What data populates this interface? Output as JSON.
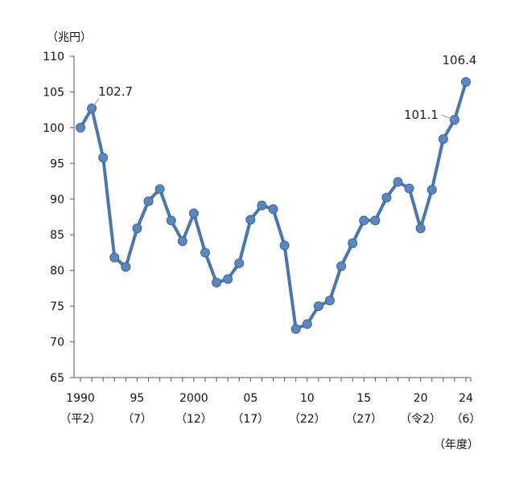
{
  "chart_data": {
    "type": "line",
    "y_unit_label": "（兆円）",
    "x_unit_label": "（年度）",
    "ylim": [
      65,
      110
    ],
    "y_ticks": [
      65,
      70,
      75,
      80,
      85,
      90,
      95,
      100,
      105,
      110
    ],
    "x_tick_labels": [
      {
        "year": 1990,
        "label": "1990",
        "era": "（平2）"
      },
      {
        "year": 1995,
        "label": "95",
        "era": "（7）"
      },
      {
        "year": 2000,
        "label": "2000",
        "era": "（12）"
      },
      {
        "year": 2005,
        "label": "05",
        "era": "（17）"
      },
      {
        "year": 2010,
        "label": "10",
        "era": "（22）"
      },
      {
        "year": 2015,
        "label": "15",
        "era": "（27）"
      },
      {
        "year": 2020,
        "label": "20",
        "era": "（令2）"
      },
      {
        "year": 2024,
        "label": "24",
        "era": "（6）"
      }
    ],
    "grid": false,
    "legend": "none",
    "line_color": "#4a76ab",
    "marker_color": "#5b87c0",
    "x": [
      1990,
      1991,
      1992,
      1993,
      1994,
      1995,
      1996,
      1997,
      1998,
      1999,
      2000,
      2001,
      2002,
      2003,
      2004,
      2005,
      2006,
      2007,
      2008,
      2009,
      2010,
      2011,
      2012,
      2013,
      2014,
      2015,
      2016,
      2017,
      2018,
      2019,
      2020,
      2021,
      2022,
      2023,
      2024
    ],
    "series": [
      {
        "values": [
          100,
          102.7,
          95.8,
          81.8,
          80.5,
          85.9,
          89.7,
          91.4,
          87.0,
          84.1,
          88.0,
          82.5,
          78.3,
          78.8,
          81.0,
          87.1,
          89.1,
          88.6,
          83.5,
          71.8,
          72.5,
          75.0,
          75.8,
          80.6,
          83.8,
          87.0,
          87.0,
          90.2,
          92.4,
          91.5,
          85.9,
          91.3,
          98.4,
          101.1,
          106.4
        ]
      }
    ],
    "annotations": [
      {
        "year": 1991,
        "text": "102.7"
      },
      {
        "year": 2023,
        "text": "101.1"
      },
      {
        "year": 2024,
        "text": "106.4"
      }
    ]
  }
}
